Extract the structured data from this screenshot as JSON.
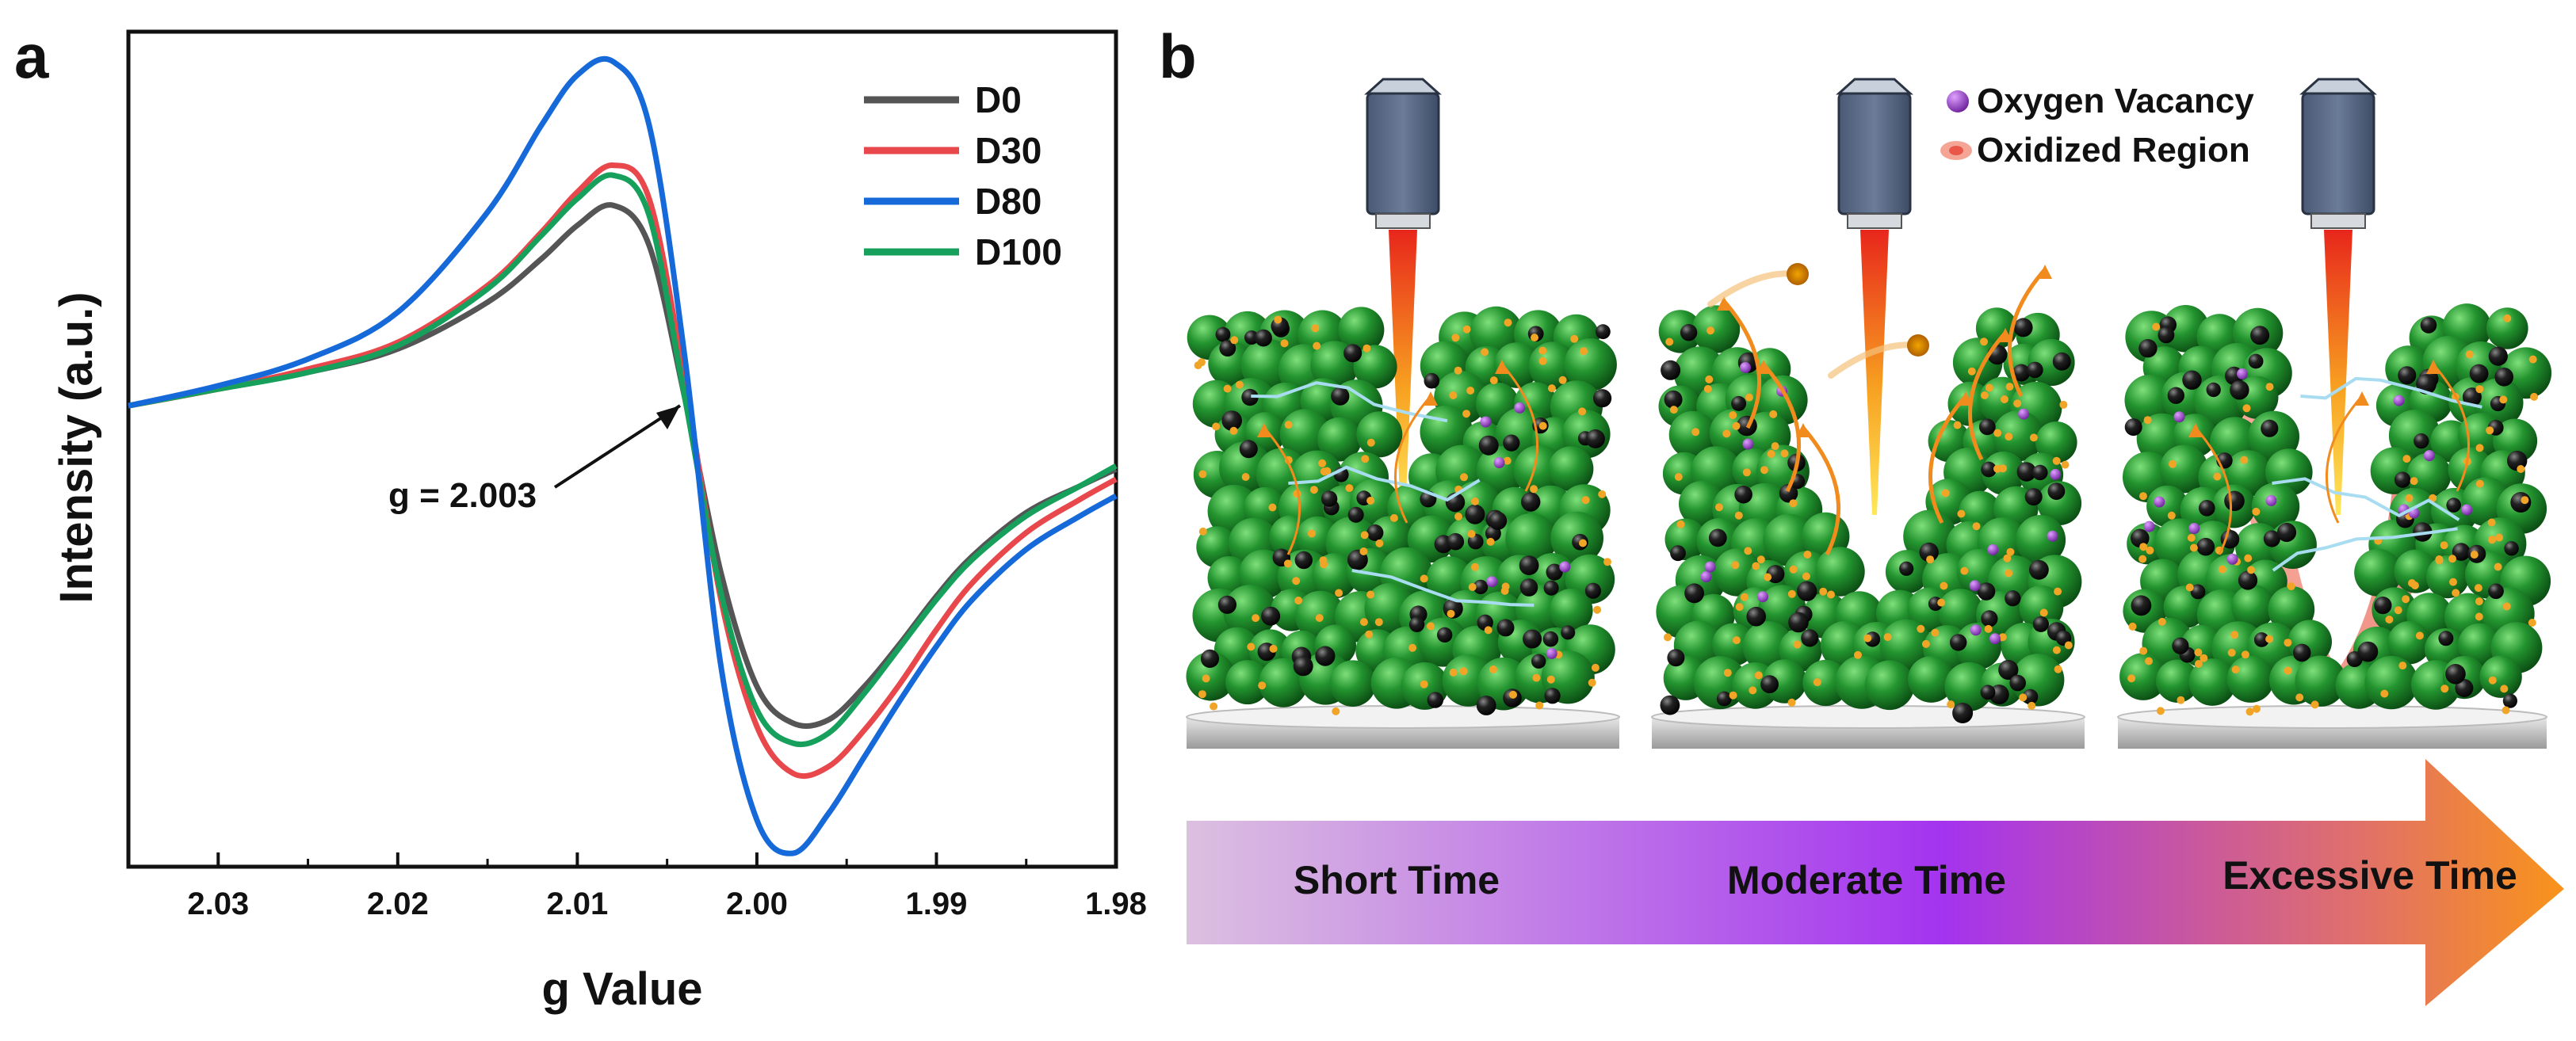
{
  "panel_a": {
    "label": "a",
    "chart_data": {
      "type": "line",
      "title": "",
      "xlabel": "g Value",
      "ylabel": "Intensity (a.u.)",
      "xlim": [
        2.035,
        1.98
      ],
      "ylim": [
        -1.4,
        1.1
      ],
      "xticks": [
        "2.03",
        "2.02",
        "2.01",
        "2.00",
        "1.99",
        "1.98"
      ],
      "xtick_values": [
        2.03,
        2.02,
        2.01,
        2.0,
        1.99,
        1.98
      ],
      "legend_position": "top-right",
      "annotation": {
        "text": "g = 2.003",
        "points_to": 2.004
      },
      "series": [
        {
          "name": "D0",
          "color": "#555555",
          "x": [
            2.035,
            2.03,
            2.025,
            2.02,
            2.015,
            2.012,
            2.01,
            2.008,
            2.006,
            2.004,
            2.002,
            2.0,
            1.998,
            1.996,
            1.994,
            1.992,
            1.99,
            1.988,
            1.985,
            1.982,
            1.98
          ],
          "y": [
            -0.02,
            0.03,
            0.08,
            0.15,
            0.29,
            0.42,
            0.52,
            0.58,
            0.46,
            0.0,
            -0.52,
            -0.86,
            -0.97,
            -0.96,
            -0.86,
            -0.73,
            -0.59,
            -0.47,
            -0.34,
            -0.26,
            -0.21
          ]
        },
        {
          "name": "D30",
          "color": "#e8474b",
          "x": [
            2.035,
            2.03,
            2.025,
            2.02,
            2.015,
            2.012,
            2.01,
            2.008,
            2.006,
            2.004,
            2.002,
            2.0,
            1.998,
            1.996,
            1.994,
            1.992,
            1.99,
            1.988,
            1.985,
            1.982,
            1.98
          ],
          "y": [
            -0.02,
            0.03,
            0.09,
            0.17,
            0.34,
            0.5,
            0.62,
            0.7,
            0.6,
            0.05,
            -0.6,
            -0.98,
            -1.12,
            -1.1,
            -0.99,
            -0.85,
            -0.69,
            -0.55,
            -0.4,
            -0.3,
            -0.24
          ]
        },
        {
          "name": "D80",
          "color": "#1669d8",
          "x": [
            2.035,
            2.03,
            2.025,
            2.02,
            2.015,
            2.012,
            2.01,
            2.008,
            2.006,
            2.004,
            2.002,
            2.0,
            1.998,
            1.996,
            1.994,
            1.992,
            1.99,
            1.988,
            1.985,
            1.982,
            1.98
          ],
          "y": [
            -0.02,
            0.04,
            0.12,
            0.26,
            0.56,
            0.82,
            0.97,
            1.01,
            0.82,
            0.12,
            -0.8,
            -1.26,
            -1.36,
            -1.24,
            -1.07,
            -0.9,
            -0.74,
            -0.6,
            -0.45,
            -0.35,
            -0.29
          ]
        },
        {
          "name": "D100",
          "color": "#16a05c",
          "x": [
            2.035,
            2.03,
            2.025,
            2.02,
            2.015,
            2.012,
            2.01,
            2.008,
            2.006,
            2.004,
            2.002,
            2.0,
            1.998,
            1.996,
            1.994,
            1.992,
            1.99,
            1.988,
            1.985,
            1.982,
            1.98
          ],
          "y": [
            -0.02,
            0.03,
            0.08,
            0.16,
            0.33,
            0.49,
            0.6,
            0.67,
            0.55,
            0.0,
            -0.58,
            -0.93,
            -1.03,
            -1.0,
            -0.88,
            -0.74,
            -0.6,
            -0.48,
            -0.35,
            -0.26,
            -0.2
          ]
        }
      ]
    }
  },
  "panel_b": {
    "label": "b",
    "legend": [
      {
        "name": "Oxygen Vacancy",
        "color": "#9a3fc8"
      },
      {
        "name": "Oxidized Region",
        "color": "#f08070"
      }
    ],
    "stages": [
      "Short Time",
      "Moderate Time",
      "Excessive Time"
    ],
    "colors": {
      "particle": "#1f8a2c",
      "carbon": "#111111",
      "dot": "#f1a526",
      "crack": "#8fd0e8",
      "laser_top": "#e8261c",
      "laser_bottom": "#ffe040"
    }
  }
}
